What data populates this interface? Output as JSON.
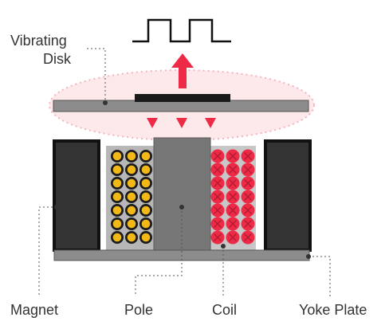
{
  "labels": {
    "vibrating_line1": "Vibrating",
    "vibrating_line2": "Disk",
    "magnet": "Magnet",
    "pole": "Pole",
    "coil": "Coil",
    "yoke_plate": "Yoke Plate"
  },
  "colors": {
    "accent_red": "#ee2b47",
    "magnet_dark": "#333333",
    "plate_gray": "#8a8a8a",
    "pole_gray": "#777777",
    "coil_gold": "#f2b817",
    "coil_back": "#b7b7b7",
    "halo": "#fde8ea"
  },
  "icons": {
    "signal": "square-wave-icon",
    "up_arrow": "arrow-up-icon",
    "down_arrows": "arrow-down-icon"
  }
}
